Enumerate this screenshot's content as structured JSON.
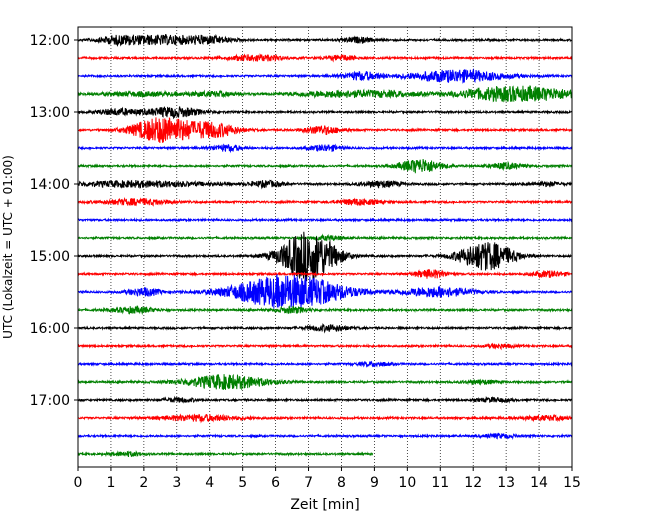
{
  "chart_data": {
    "type": "line",
    "title": "",
    "xlabel": "Zeit  [min]",
    "ylabel": "UTC (Lokalzeit = UTC + 01:00)",
    "xlim": [
      0,
      15
    ],
    "xticks": [
      "0",
      "1",
      "2",
      "3",
      "4",
      "5",
      "6",
      "7",
      "8",
      "9",
      "10",
      "11",
      "12",
      "13",
      "14",
      "15"
    ],
    "yticks": [
      "12:00",
      "13:00",
      "14:00",
      "15:00",
      "16:00",
      "17:00"
    ],
    "grid": "vertical dotted",
    "colors": [
      "#000000",
      "#ff0000",
      "#0000ff",
      "#008000"
    ],
    "traces": [
      {
        "start": "12:00",
        "color": "#000000",
        "end_min": 15,
        "events": [
          [
            2.5,
            3.0,
            9
          ],
          [
            4.0,
            1.6,
            6
          ],
          [
            1.2,
            1.4,
            6
          ],
          [
            8.5,
            1.2,
            5
          ]
        ]
      },
      {
        "start": "12:15",
        "color": "#ff0000",
        "end_min": 15,
        "events": [
          [
            5.4,
            2.0,
            6
          ],
          [
            8.0,
            1.2,
            5
          ]
        ]
      },
      {
        "start": "12:30",
        "color": "#0000ff",
        "end_min": 15,
        "events": [
          [
            11.5,
            3.5,
            12
          ],
          [
            8.6,
            1.4,
            8
          ]
        ]
      },
      {
        "start": "12:45",
        "color": "#008000",
        "end_min": 15,
        "events": [
          [
            1.9,
            3.0,
            4
          ],
          [
            4.1,
            2.0,
            4
          ],
          [
            7.6,
            3.0,
            5
          ],
          [
            9.3,
            3.0,
            5
          ],
          [
            12.3,
            2.0,
            4
          ],
          [
            13.6,
            4.0,
            14
          ]
        ]
      },
      {
        "start": "13:00",
        "color": "#000000",
        "end_min": 15,
        "events": [
          [
            2.9,
            2.0,
            10
          ],
          [
            1.2,
            1.5,
            6
          ]
        ]
      },
      {
        "start": "13:15",
        "color": "#ff0000",
        "end_min": 15,
        "events": [
          [
            2.6,
            2.2,
            26
          ],
          [
            4.1,
            1.8,
            14
          ],
          [
            7.4,
            1.4,
            8
          ]
        ]
      },
      {
        "start": "13:30",
        "color": "#0000ff",
        "end_min": 15,
        "events": [
          [
            4.5,
            1.2,
            6
          ],
          [
            7.5,
            1.2,
            6
          ]
        ]
      },
      {
        "start": "13:45",
        "color": "#008000",
        "end_min": 15,
        "events": [
          [
            10.4,
            1.5,
            14
          ],
          [
            13.0,
            1.2,
            6
          ]
        ]
      },
      {
        "start": "14:00",
        "color": "#000000",
        "end_min": 15,
        "events": [
          [
            1.8,
            5.0,
            6
          ],
          [
            9.2,
            1.5,
            6
          ],
          [
            14.2,
            1.2,
            4
          ],
          [
            5.7,
            1.2,
            6
          ]
        ]
      },
      {
        "start": "14:15",
        "color": "#ff0000",
        "end_min": 15,
        "events": [
          [
            1.8,
            2.5,
            6
          ],
          [
            8.5,
            1.5,
            6
          ]
        ]
      },
      {
        "start": "14:30",
        "color": "#0000ff",
        "end_min": 15,
        "events": []
      },
      {
        "start": "14:45",
        "color": "#008000",
        "end_min": 15,
        "events": [
          [
            7.6,
            1.2,
            4
          ]
        ]
      },
      {
        "start": "15:00",
        "color": "#000000",
        "end_min": 15,
        "events": [
          [
            7.0,
            2.0,
            50
          ],
          [
            12.4,
            2.0,
            28
          ]
        ]
      },
      {
        "start": "15:15",
        "color": "#ff0000",
        "end_min": 15,
        "events": [
          [
            10.7,
            1.2,
            8
          ],
          [
            14.3,
            1.2,
            6
          ]
        ]
      },
      {
        "start": "15:30",
        "color": "#0000ff",
        "end_min": 15,
        "events": [
          [
            6.4,
            4.0,
            34
          ],
          [
            10.9,
            2.5,
            10
          ],
          [
            2.0,
            1.2,
            8
          ]
        ]
      },
      {
        "start": "15:45",
        "color": "#008000",
        "end_min": 15,
        "events": [
          [
            1.7,
            1.5,
            6
          ],
          [
            6.5,
            1.2,
            6
          ]
        ]
      },
      {
        "start": "16:00",
        "color": "#000000",
        "end_min": 15,
        "events": [
          [
            7.6,
            1.5,
            6
          ]
        ]
      },
      {
        "start": "16:15",
        "color": "#ff0000",
        "end_min": 15,
        "events": [
          [
            12.8,
            1.0,
            4
          ]
        ]
      },
      {
        "start": "16:30",
        "color": "#0000ff",
        "end_min": 15,
        "events": [
          [
            9.0,
            1.2,
            4
          ]
        ]
      },
      {
        "start": "16:45",
        "color": "#008000",
        "end_min": 15,
        "events": [
          [
            4.5,
            3.0,
            14
          ],
          [
            12.2,
            1.2,
            4
          ]
        ]
      },
      {
        "start": "17:00",
        "color": "#000000",
        "end_min": 15,
        "events": [
          [
            3.1,
            1.2,
            4
          ],
          [
            12.6,
            1.2,
            4
          ]
        ]
      },
      {
        "start": "17:15",
        "color": "#ff0000",
        "end_min": 15,
        "events": [
          [
            3.7,
            3.0,
            6
          ],
          [
            14.2,
            2.0,
            4
          ]
        ]
      },
      {
        "start": "17:30",
        "color": "#0000ff",
        "end_min": 15,
        "events": [
          [
            12.8,
            1.2,
            4
          ]
        ]
      },
      {
        "start": "17:45",
        "color": "#008000",
        "end_min": 8.95,
        "events": [
          [
            1.5,
            1.2,
            4
          ]
        ]
      }
    ]
  }
}
